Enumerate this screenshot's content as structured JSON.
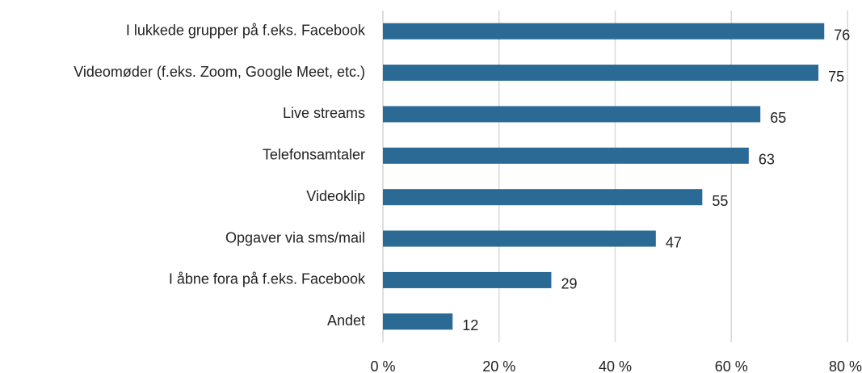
{
  "chart_data": {
    "type": "bar",
    "orientation": "horizontal",
    "categories": [
      "I lukkede grupper på f.eks. Facebook",
      "Videomøder (f.eks. Zoom, Google Meet, etc.)",
      "Live streams",
      "Telefonsamtaler",
      "Videoklip",
      "Opgaver via sms/mail",
      "I åbne fora på f.eks. Facebook",
      "Andet"
    ],
    "values": [
      76,
      75,
      65,
      63,
      55,
      47,
      29,
      12
    ],
    "color": "#2a6a94",
    "xlim": [
      0,
      80
    ],
    "xticks": [
      {
        "value": 0,
        "label": "0 %"
      },
      {
        "value": 20,
        "label": "20 %"
      },
      {
        "value": 40,
        "label": "40 %"
      },
      {
        "value": 60,
        "label": "60 %"
      },
      {
        "value": 80,
        "label": "80 %"
      }
    ],
    "grid": true
  }
}
